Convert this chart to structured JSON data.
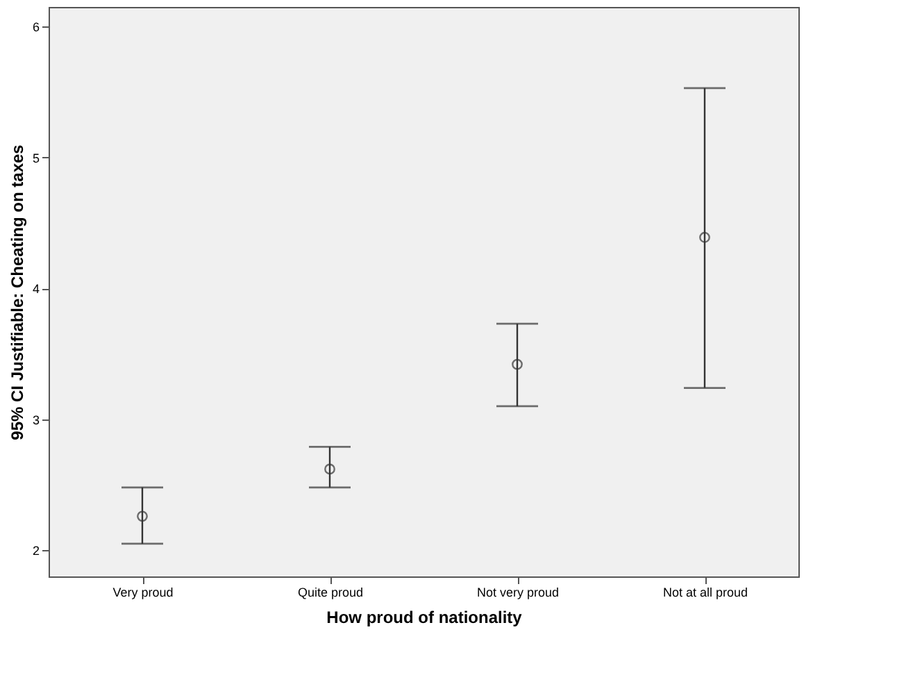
{
  "chart_data": {
    "type": "scatter",
    "xlabel": "How proud of nationality",
    "ylabel": "95% CI Justifiable: Cheating on taxes",
    "categories": [
      "Very proud",
      "Quite proud",
      "Not very proud",
      "Not at all proud"
    ],
    "values": [
      2.26,
      2.62,
      3.42,
      4.39
    ],
    "errors": [
      [
        2.05,
        2.48
      ],
      [
        2.48,
        2.79
      ],
      [
        3.1,
        3.73
      ],
      [
        3.24,
        5.53
      ]
    ],
    "color": "#333333",
    "marker": "circle",
    "ylim": [
      1.8,
      6.15
    ],
    "yticks": [
      2,
      3,
      4,
      5,
      6
    ],
    "grid": false
  }
}
